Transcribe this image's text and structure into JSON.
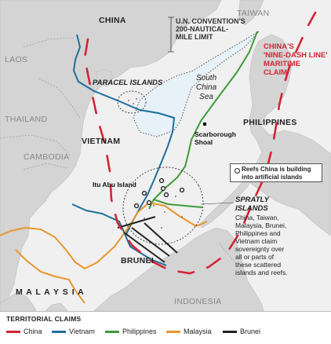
{
  "countries": {
    "china": "CHINA",
    "taiwan": "TAIWAN",
    "laos": "LAOS",
    "thailand": "THAILAND",
    "vietnam": "VIETNAM",
    "cambodia": "CAMBODIA",
    "philippines": "PHILIPPINES",
    "brunei": "BRUNEI",
    "malaysia": "M A L A Y S I A",
    "indonesia": "INDONESIA"
  },
  "sea_label": [
    "South",
    "China",
    "Sea"
  ],
  "paracel": "PARACEL ISLANDS",
  "un_convention": [
    "U.N. CONVENTION'S",
    "200-NAUTICAL-",
    "MILE LIMIT"
  ],
  "nine_dash": [
    "CHINA'S",
    "'NINE-DASH LINE'",
    "MARITIME",
    "CLAIM"
  ],
  "scarborough": [
    "Scarborough",
    "Shoal"
  ],
  "itu_aba": "Itu Abu Island",
  "reef_note": "Reefs China is building into artificial islands",
  "spratly": {
    "title": [
      "SPRATLY",
      "ISLANDS"
    ],
    "desc": [
      "China, Taiwan,",
      "Malaysia, Brunei,",
      "Philippines and",
      "Vietnam claim",
      "sovereignty over",
      "all or parts of",
      "these scattered",
      "islands and reefs."
    ]
  },
  "legend": {
    "title": "TERRITORIAL CLAIMS",
    "items": [
      {
        "label": "China",
        "color": "#d32434"
      },
      {
        "label": "Vietnam",
        "color": "#1f6e9c"
      },
      {
        "label": "Philippines",
        "color": "#3f9a3a"
      },
      {
        "label": "Malaysia",
        "color": "#e8962b"
      },
      {
        "label": "Brunei",
        "color": "#222222"
      }
    ]
  },
  "colors": {
    "land": "#d4d4d4",
    "water": "#f0f0f0",
    "un_zone": "#e6f1f8"
  }
}
